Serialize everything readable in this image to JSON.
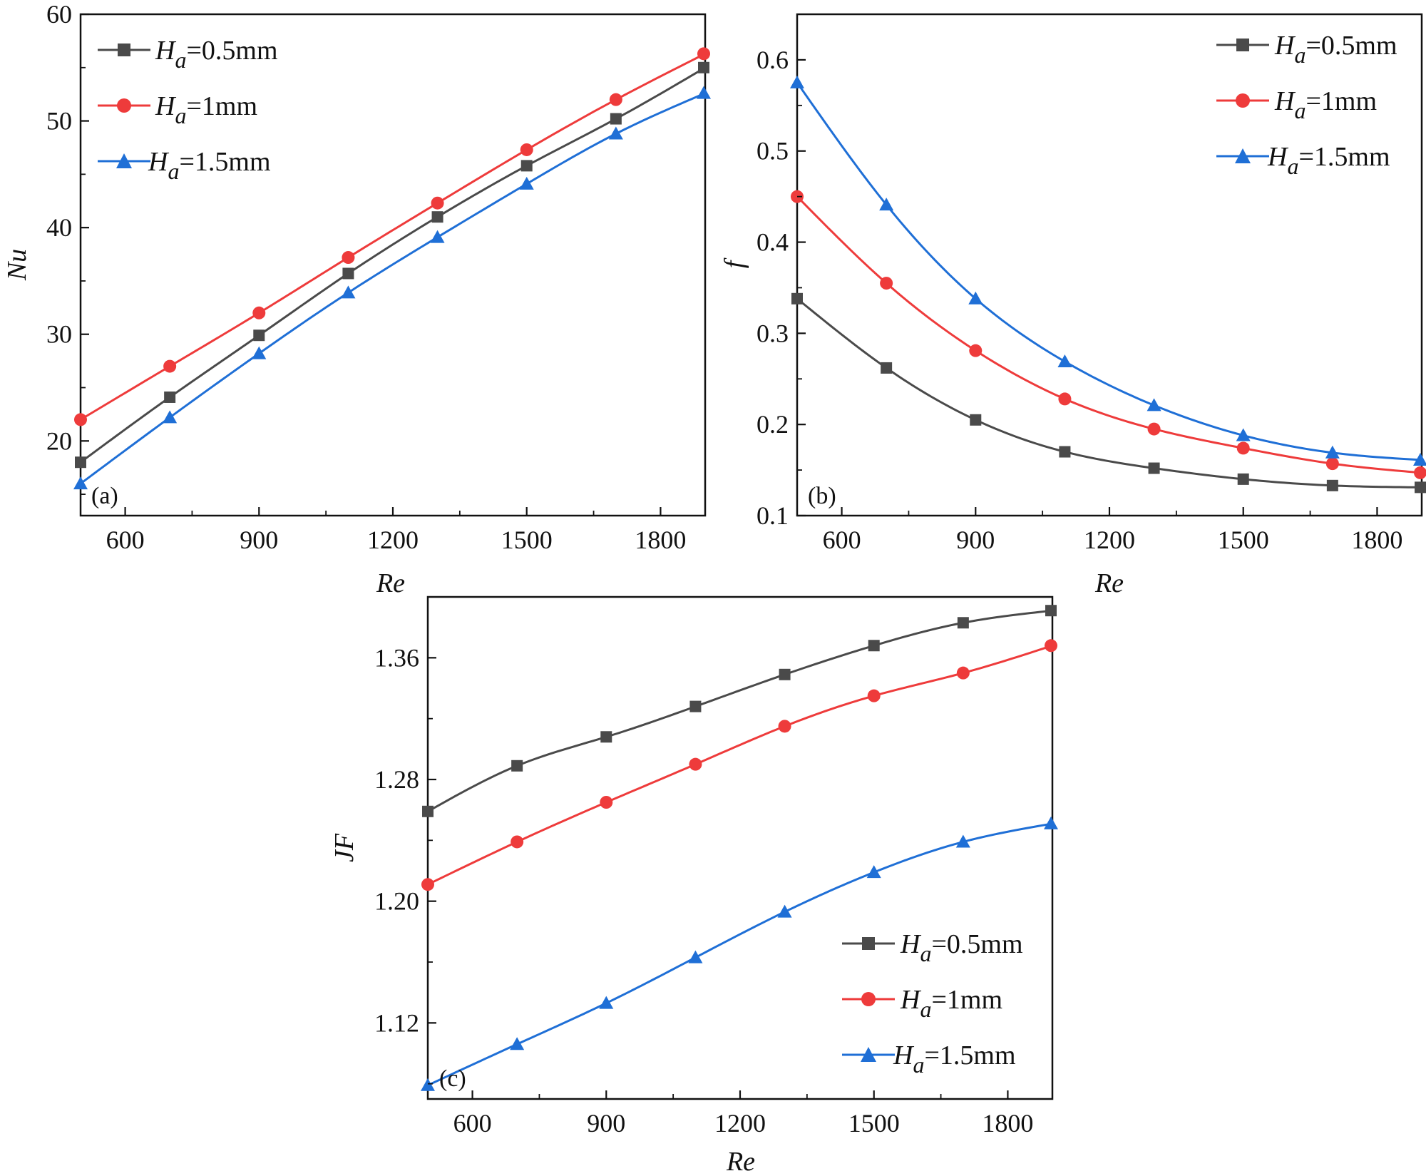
{
  "colors": {
    "s0": "#4a4a4a",
    "s1": "#ee3b3b",
    "s2": "#1f6fd6"
  },
  "legend_entries": [
    {
      "var": "H",
      "sub": "a",
      "value": "=0.5mm",
      "marker": "square"
    },
    {
      "var": "H",
      "sub": "a",
      "value": "=1mm",
      "marker": "circle"
    },
    {
      "var": "H",
      "sub": "a",
      "value": "=1.5mm",
      "marker": "triangle"
    }
  ],
  "chart_data": [
    {
      "type": "line",
      "panel_label": "(a)",
      "xlabel": "Re",
      "ylabel": "Nu",
      "xlim": [
        500,
        1900
      ],
      "ylim": [
        13,
        60
      ],
      "xticks": [
        "600",
        "900",
        "1200",
        "1500",
        "1800"
      ],
      "yticks": [
        "20",
        "30",
        "40",
        "50",
        "60"
      ],
      "legend_position": "top-left",
      "x": [
        500,
        700,
        900,
        1100,
        1300,
        1500,
        1700,
        1900
      ],
      "series": [
        {
          "name": "Ha=0.5mm",
          "values": [
            18.0,
            24.1,
            29.9,
            35.7,
            41.0,
            45.8,
            50.2,
            55.0
          ]
        },
        {
          "name": "Ha=1mm",
          "values": [
            22.0,
            27.0,
            32.0,
            37.2,
            42.3,
            47.3,
            52.0,
            56.3
          ]
        },
        {
          "name": "Ha=1.5mm",
          "values": [
            16.0,
            22.2,
            28.2,
            33.9,
            39.1,
            44.1,
            48.8,
            52.6
          ]
        }
      ]
    },
    {
      "type": "line",
      "panel_label": "(b)",
      "xlabel": "Re",
      "ylabel": "f",
      "xlim": [
        500,
        1900
      ],
      "ylim": [
        0.1,
        0.65
      ],
      "xticks": [
        "600",
        "900",
        "1200",
        "1500",
        "1800"
      ],
      "yticks": [
        "0.1",
        "0.2",
        "0.3",
        "0.4",
        "0.5",
        "0.6"
      ],
      "legend_position": "top-right",
      "x": [
        500,
        700,
        900,
        1100,
        1300,
        1500,
        1700,
        1900
      ],
      "series": [
        {
          "name": "Ha=0.5mm",
          "values": [
            0.338,
            0.262,
            0.205,
            0.17,
            0.152,
            0.14,
            0.133,
            0.131
          ]
        },
        {
          "name": "Ha=1mm",
          "values": [
            0.45,
            0.355,
            0.281,
            0.228,
            0.195,
            0.174,
            0.157,
            0.147
          ]
        },
        {
          "name": "Ha=1.5mm",
          "values": [
            0.575,
            0.441,
            0.338,
            0.269,
            0.221,
            0.188,
            0.169,
            0.161
          ]
        }
      ]
    },
    {
      "type": "line",
      "panel_label": "(c)",
      "xlabel": "Re",
      "ylabel": "JF",
      "xlim": [
        500,
        1900
      ],
      "ylim": [
        1.07,
        1.4
      ],
      "xticks": [
        "600",
        "900",
        "1200",
        "1500",
        "1800"
      ],
      "yticks": [
        "1.12",
        "1.20",
        "1.28",
        "1.36"
      ],
      "legend_position": "bottom-right",
      "x": [
        500,
        700,
        900,
        1100,
        1300,
        1500,
        1700,
        1900
      ],
      "series": [
        {
          "name": "Ha=0.5mm",
          "values": [
            1.259,
            1.289,
            1.308,
            1.328,
            1.349,
            1.368,
            1.383,
            1.391
          ]
        },
        {
          "name": "Ha=1mm",
          "values": [
            1.211,
            1.239,
            1.265,
            1.29,
            1.315,
            1.335,
            1.35,
            1.368
          ]
        },
        {
          "name": "Ha=1.5mm",
          "values": [
            1.079,
            1.106,
            1.133,
            1.163,
            1.193,
            1.219,
            1.239,
            1.251
          ]
        }
      ]
    }
  ]
}
